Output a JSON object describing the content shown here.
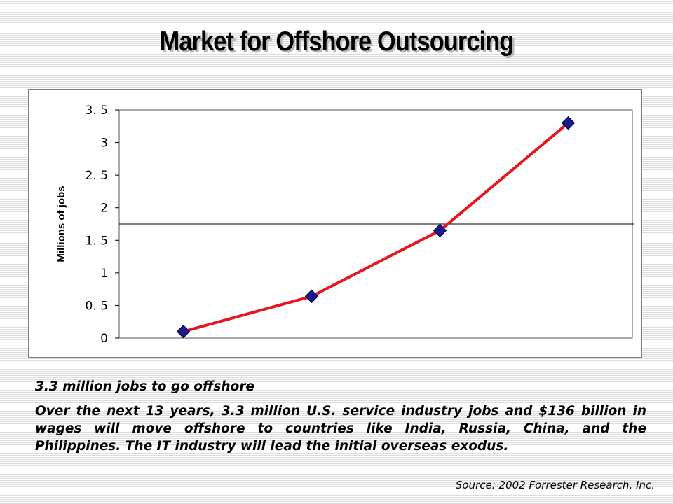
{
  "slide": {
    "title": "Market for Offshore Outsourcing",
    "caption_heading": "3.3 million jobs to go offshore",
    "caption_body": "Over the next 13 years, 3.3 million U.S. service industry jobs and $136 billion in wages will move offshore to countries like India, Russia, China, and the Philippines. The IT industry will lead the initial overseas exodus.",
    "source": "Source: 2002 Forrester Research, Inc."
  },
  "chart_data": {
    "type": "line",
    "ylabel": "Millions of jobs",
    "ylim": [
      0,
      3.5
    ],
    "yticks": [
      0,
      0.5,
      1,
      1.5,
      2,
      2.5,
      3,
      3.5
    ],
    "ytick_labels": [
      "0",
      "0. 5",
      "1",
      "1. 5",
      "2",
      "2. 5",
      "3",
      "3. 5"
    ],
    "series": [
      {
        "values": [
          0.1,
          0.64,
          1.65,
          3.3
        ],
        "line_color": "#e8141e",
        "marker": "diamond",
        "marker_color": "#1a1a8c"
      }
    ],
    "reference_line": 1.75,
    "grid": false,
    "legend": "none"
  }
}
